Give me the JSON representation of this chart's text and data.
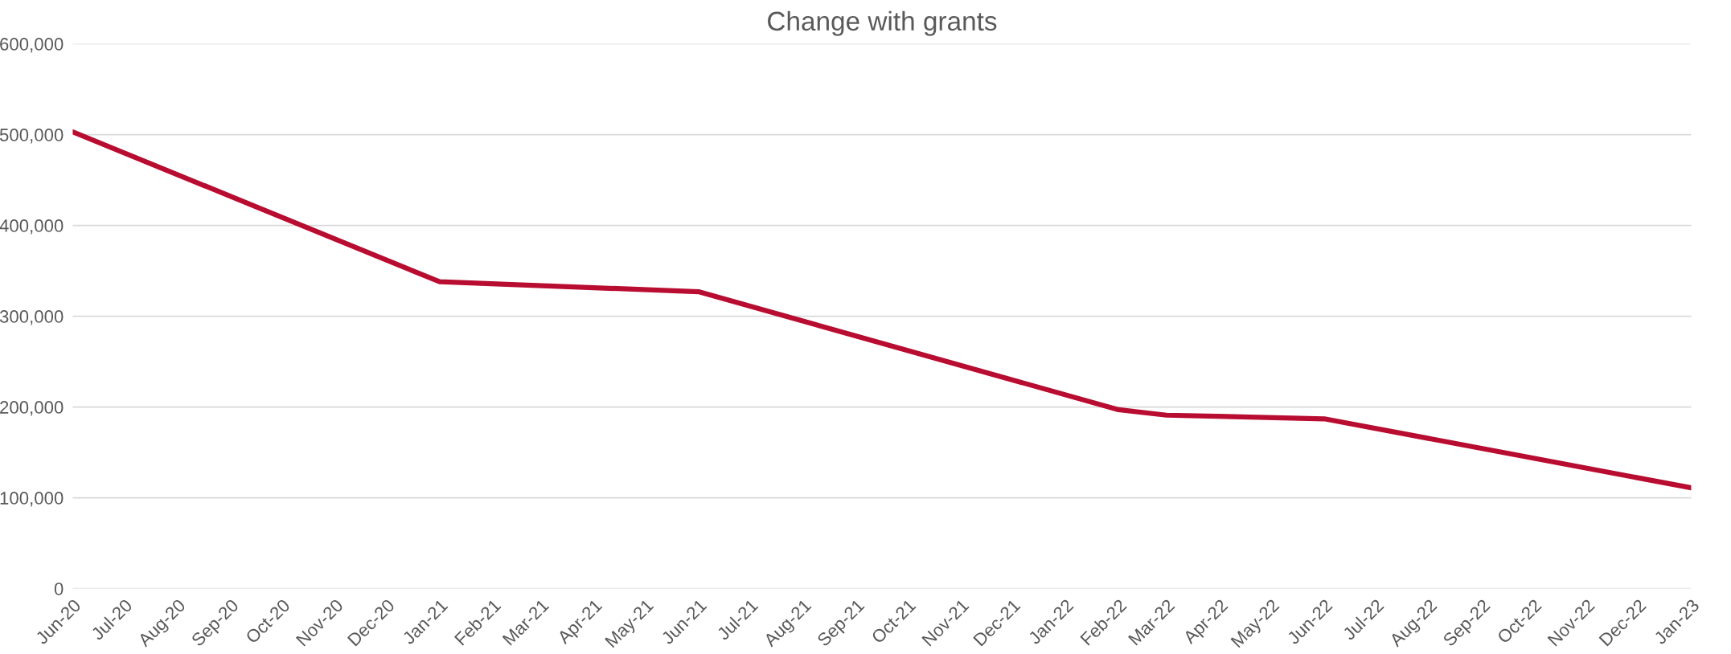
{
  "chart_data": {
    "type": "line",
    "title": "Change with grants",
    "x": [
      "2020-06",
      "2021-01",
      "2021-06",
      "2022-02",
      "2022-03",
      "2022-06",
      "2023-01"
    ],
    "series": [
      {
        "color": "#b80c30",
        "values": [
          503000,
          338000,
          327000,
          197000,
          191000,
          187000,
          111000
        ]
      }
    ],
    "xlim": [
      "2020-06",
      "2023-01"
    ],
    "xticks": [
      {
        "value": "2020-06",
        "label": "Jun-20"
      },
      {
        "value": "2020-07",
        "label": "Jul-20"
      },
      {
        "value": "2020-08",
        "label": "Aug-20"
      },
      {
        "value": "2020-09",
        "label": "Sep-20"
      },
      {
        "value": "2020-10",
        "label": "Oct-20"
      },
      {
        "value": "2020-11",
        "label": "Nov-20"
      },
      {
        "value": "2020-12",
        "label": "Dec-20"
      },
      {
        "value": "2021-01",
        "label": "Jan-21"
      },
      {
        "value": "2021-02",
        "label": "Feb-21"
      },
      {
        "value": "2021-03",
        "label": "Mar-21"
      },
      {
        "value": "2021-04",
        "label": "Apr-21"
      },
      {
        "value": "2021-05",
        "label": "May-21"
      },
      {
        "value": "2021-06",
        "label": "Jun-21"
      },
      {
        "value": "2021-07",
        "label": "Jul-21"
      },
      {
        "value": "2021-08",
        "label": "Aug-21"
      },
      {
        "value": "2021-09",
        "label": "Sep-21"
      },
      {
        "value": "2021-10",
        "label": "Oct-21"
      },
      {
        "value": "2021-11",
        "label": "Nov-21"
      },
      {
        "value": "2021-12",
        "label": "Dec-21"
      },
      {
        "value": "2022-01",
        "label": "Jan-22"
      },
      {
        "value": "2022-02",
        "label": "Feb-22"
      },
      {
        "value": "2022-03",
        "label": "Mar-22"
      },
      {
        "value": "2022-04",
        "label": "Apr-22"
      },
      {
        "value": "2022-05",
        "label": "May-22"
      },
      {
        "value": "2022-06",
        "label": "Jun-22"
      },
      {
        "value": "2022-07",
        "label": "Jul-22"
      },
      {
        "value": "2022-08",
        "label": "Aug-22"
      },
      {
        "value": "2022-09",
        "label": "Sep-22"
      },
      {
        "value": "2022-10",
        "label": "Oct-22"
      },
      {
        "value": "2022-11",
        "label": "Nov-22"
      },
      {
        "value": "2022-12",
        "label": "Dec-22"
      },
      {
        "value": "2023-01",
        "label": "Jan-23"
      }
    ],
    "ylim": [
      0,
      600000
    ],
    "yticks": [
      {
        "value": 0,
        "label": "0"
      },
      {
        "value": 100000,
        "label": "100,000"
      },
      {
        "value": 200000,
        "label": "200,000"
      },
      {
        "value": 300000,
        "label": "300,000"
      },
      {
        "value": 400000,
        "label": "400,000"
      },
      {
        "value": 500000,
        "label": "500,000"
      },
      {
        "value": 600000,
        "label": "600,000"
      }
    ],
    "grid": "y",
    "marker": "none",
    "line_style": "solid"
  }
}
